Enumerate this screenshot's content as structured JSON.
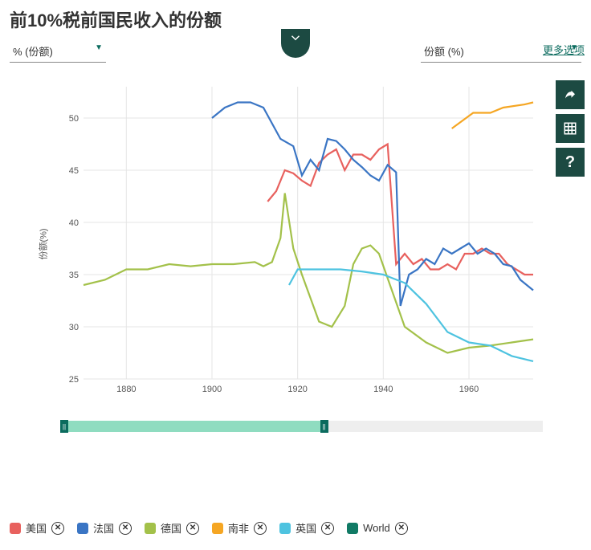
{
  "title": "前10%税前国民收入的份额",
  "left_select": "% (份额)",
  "right_select": "份额 (%)",
  "more_options": "更多选项",
  "chart": {
    "type": "line",
    "yaxis_label": "份额(%)",
    "background_color": "#ffffff",
    "grid_color": "#e5e5e5",
    "xlim": [
      1870,
      1975
    ],
    "ylim": [
      25,
      53
    ],
    "xticks": [
      1880,
      1900,
      1920,
      1940,
      1960
    ],
    "yticks": [
      25,
      30,
      35,
      40,
      45,
      50
    ],
    "line_width": 2.2,
    "axis_fontsize": 11,
    "series": [
      {
        "name": "美国",
        "color": "#e8615e",
        "data": [
          [
            1913,
            42
          ],
          [
            1915,
            43
          ],
          [
            1917,
            45
          ],
          [
            1919,
            44.7
          ],
          [
            1921,
            44
          ],
          [
            1923,
            43.5
          ],
          [
            1925,
            45.7
          ],
          [
            1927,
            46.5
          ],
          [
            1929,
            47
          ],
          [
            1931,
            45
          ],
          [
            1933,
            46.5
          ],
          [
            1935,
            46.5
          ],
          [
            1937,
            46
          ],
          [
            1939,
            47
          ],
          [
            1941,
            47.5
          ],
          [
            1943,
            36
          ],
          [
            1945,
            37
          ],
          [
            1947,
            36
          ],
          [
            1949,
            36.5
          ],
          [
            1951,
            35.5
          ],
          [
            1953,
            35.5
          ],
          [
            1955,
            36
          ],
          [
            1957,
            35.5
          ],
          [
            1959,
            37
          ],
          [
            1961,
            37
          ],
          [
            1963,
            37.5
          ],
          [
            1965,
            37
          ],
          [
            1967,
            37
          ],
          [
            1969,
            36
          ],
          [
            1971,
            35.5
          ],
          [
            1973,
            35
          ],
          [
            1975,
            35
          ]
        ]
      },
      {
        "name": "法国",
        "color": "#3a75c4",
        "data": [
          [
            1900,
            50
          ],
          [
            1903,
            51
          ],
          [
            1906,
            51.5
          ],
          [
            1909,
            51.5
          ],
          [
            1912,
            51
          ],
          [
            1916,
            48
          ],
          [
            1919,
            47.3
          ],
          [
            1921,
            44.5
          ],
          [
            1923,
            46
          ],
          [
            1925,
            45
          ],
          [
            1927,
            48
          ],
          [
            1929,
            47.8
          ],
          [
            1931,
            47
          ],
          [
            1933,
            46
          ],
          [
            1935,
            45.3
          ],
          [
            1937,
            44.5
          ],
          [
            1939,
            44
          ],
          [
            1941,
            45.5
          ],
          [
            1943,
            44.8
          ],
          [
            1944,
            32
          ],
          [
            1946,
            35
          ],
          [
            1948,
            35.5
          ],
          [
            1950,
            36.5
          ],
          [
            1952,
            36
          ],
          [
            1954,
            37.5
          ],
          [
            1956,
            37
          ],
          [
            1958,
            37.5
          ],
          [
            1960,
            38
          ],
          [
            1962,
            37
          ],
          [
            1964,
            37.5
          ],
          [
            1966,
            37
          ],
          [
            1968,
            36
          ],
          [
            1970,
            35.8
          ],
          [
            1972,
            34.5
          ],
          [
            1975,
            33.5
          ]
        ]
      },
      {
        "name": "德国",
        "color": "#a3c14a",
        "data": [
          [
            1870,
            34
          ],
          [
            1875,
            34.5
          ],
          [
            1880,
            35.5
          ],
          [
            1885,
            35.5
          ],
          [
            1890,
            36
          ],
          [
            1895,
            35.8
          ],
          [
            1900,
            36
          ],
          [
            1905,
            36
          ],
          [
            1910,
            36.2
          ],
          [
            1912,
            35.8
          ],
          [
            1914,
            36.2
          ],
          [
            1916,
            38.5
          ],
          [
            1917,
            42.8
          ],
          [
            1919,
            37.5
          ],
          [
            1921,
            35
          ],
          [
            1925,
            30.5
          ],
          [
            1928,
            30
          ],
          [
            1931,
            32
          ],
          [
            1933,
            36
          ],
          [
            1935,
            37.5
          ],
          [
            1937,
            37.8
          ],
          [
            1939,
            37
          ],
          [
            1945,
            30
          ],
          [
            1950,
            28.5
          ],
          [
            1955,
            27.5
          ],
          [
            1960,
            28
          ],
          [
            1965,
            28.2
          ],
          [
            1970,
            28.5
          ],
          [
            1975,
            28.8
          ]
        ]
      },
      {
        "name": "南非",
        "color": "#f5a623",
        "data": [
          [
            1956,
            49
          ],
          [
            1961,
            50.5
          ],
          [
            1965,
            50.5
          ],
          [
            1968,
            51
          ],
          [
            1973,
            51.3
          ],
          [
            1975,
            51.5
          ]
        ]
      },
      {
        "name": "英国",
        "color": "#4ec3e0",
        "data": [
          [
            1918,
            34
          ],
          [
            1920,
            35.5
          ],
          [
            1925,
            35.5
          ],
          [
            1930,
            35.5
          ],
          [
            1935,
            35.3
          ],
          [
            1940,
            35
          ],
          [
            1945,
            34.2
          ],
          [
            1950,
            32.2
          ],
          [
            1955,
            29.5
          ],
          [
            1960,
            28.5
          ],
          [
            1965,
            28.2
          ],
          [
            1970,
            27.2
          ],
          [
            1975,
            26.7
          ]
        ]
      },
      {
        "name": "World",
        "color": "#117a65",
        "data": []
      }
    ]
  },
  "slider": {
    "min": 1870,
    "max": 1975,
    "range_start": 1870,
    "range_end": 1927,
    "track_bg": "#eeeeee",
    "range_bg": "#8fdcc0",
    "handle_bg": "#0b6b5e"
  },
  "side_buttons": {
    "share": "share-icon",
    "table": "table-icon",
    "help": "help-icon"
  }
}
